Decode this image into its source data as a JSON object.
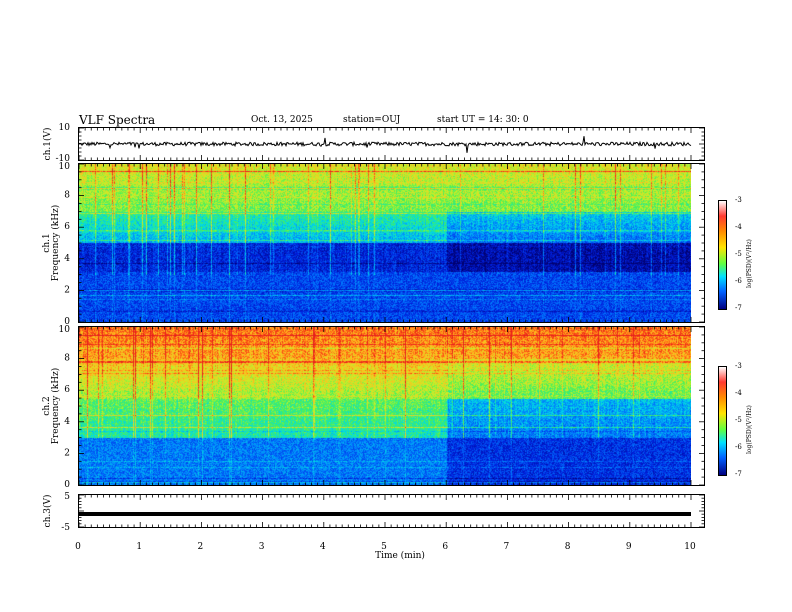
{
  "header": {
    "title": "VLF Spectra",
    "date": "Oct. 13, 2025",
    "station": "station=OUJ",
    "start": "start  UT =   14: 30: 0"
  },
  "colors": {
    "trace": "#000000",
    "background": "#ffffff"
  },
  "chart_data": [
    {
      "type": "line",
      "id": "ch1-voltage",
      "ylabel": "ch.1(V)",
      "ylim": [
        -10,
        10
      ],
      "yticks": [
        "10",
        "-10"
      ],
      "xlim": [
        0,
        10
      ],
      "baseline": 0,
      "series": [
        {
          "name": "ch.1 waveform",
          "description_level": 0
        }
      ]
    },
    {
      "type": "heatmap",
      "id": "ch1-spectrogram",
      "ylabel": "ch.1\nFrequency  (kHz)",
      "ylabel_line1": "ch.1",
      "ylabel_line2": "Frequency  (kHz)",
      "ylim": [
        0,
        10
      ],
      "yticks": [
        "0",
        "2",
        "4",
        "6",
        "8",
        "10"
      ],
      "xlim": [
        0,
        10
      ],
      "colorbar": {
        "label": "log(PSD)(V²/Hz)",
        "range": [
          -7,
          -3
        ],
        "ticks": [
          "-3",
          "-4",
          "-5",
          "-6",
          "-7"
        ]
      }
    },
    {
      "type": "heatmap",
      "id": "ch2-spectrogram",
      "ylabel_line1": "ch.2",
      "ylabel_line2": "Frequency  (kHz)",
      "ylim": [
        0,
        10
      ],
      "yticks": [
        "0",
        "2",
        "4",
        "6",
        "8",
        "10"
      ],
      "xlim": [
        0,
        10
      ],
      "colorbar": {
        "label": "log(PSD)(V²/Hz)",
        "range": [
          -7,
          -3
        ],
        "ticks": [
          "-3",
          "-4",
          "-5",
          "-6",
          "-7"
        ]
      }
    },
    {
      "type": "line",
      "id": "ch3-voltage",
      "ylabel": "ch.3(V)",
      "ylim": [
        -5,
        5
      ],
      "yticks": [
        "5",
        "-5"
      ],
      "xlim": [
        0,
        10
      ],
      "baseline": -1,
      "series": [
        {
          "name": "ch.3 level",
          "constant": -1
        }
      ]
    }
  ],
  "xaxis": {
    "label": "Time  (min)",
    "ticks": [
      "0",
      "1",
      "2",
      "3",
      "4",
      "5",
      "6",
      "7",
      "8",
      "9",
      "10"
    ]
  }
}
